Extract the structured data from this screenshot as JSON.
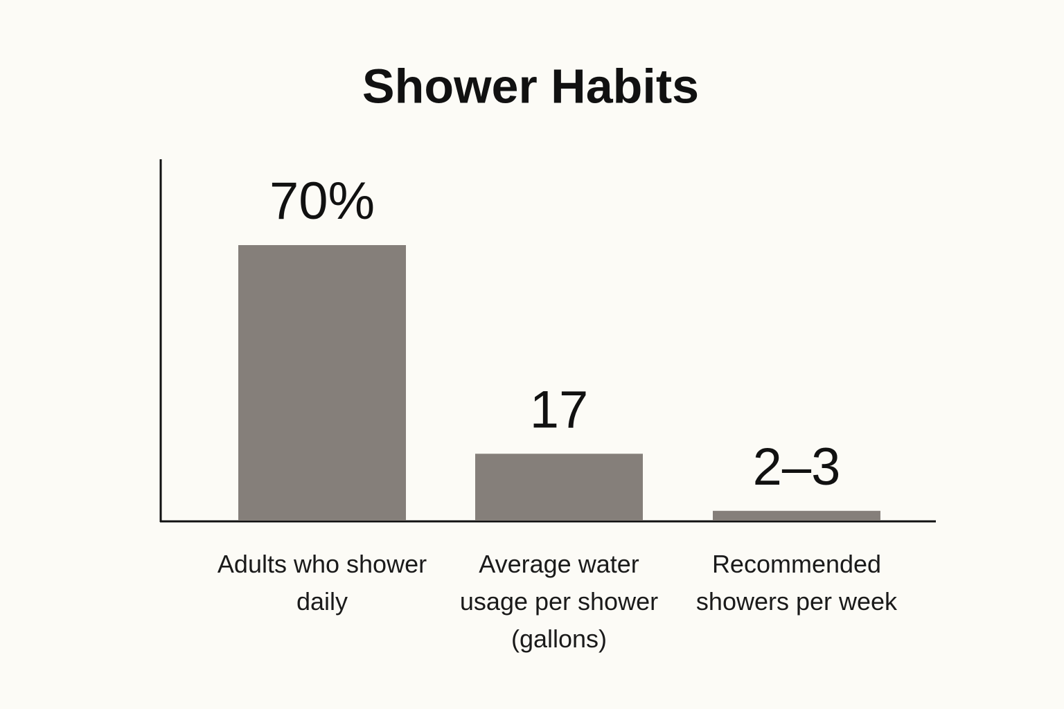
{
  "chart_data": {
    "type": "bar",
    "title": "Shower Habits",
    "categories": [
      "Adults who shower daily",
      "Average water usage per shower (gallons)",
      "Recommended showers per week"
    ],
    "values": [
      70,
      17,
      2.5
    ],
    "value_labels": [
      "70%",
      "17",
      "2–3"
    ],
    "color": "#857f7a"
  }
}
